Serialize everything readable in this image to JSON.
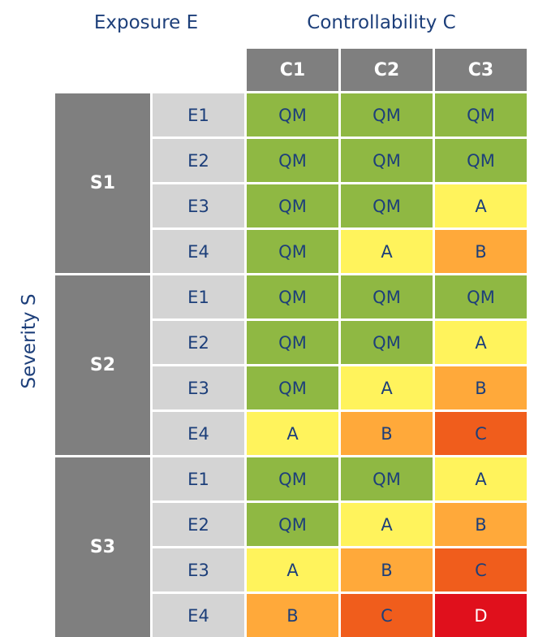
{
  "headers": {
    "exposure": "Exposure E",
    "controllability": "Controllability C",
    "severity": "Severity S"
  },
  "columns": [
    "C1",
    "C2",
    "C3"
  ],
  "severity_levels": [
    "S1",
    "S2",
    "S3"
  ],
  "exposure_levels": [
    "E1",
    "E2",
    "E3",
    "E4"
  ],
  "matrix": [
    [
      [
        "QM",
        "QM",
        "QM"
      ],
      [
        "QM",
        "QM",
        "QM"
      ],
      [
        "QM",
        "QM",
        "A"
      ],
      [
        "QM",
        "A",
        "B"
      ]
    ],
    [
      [
        "QM",
        "QM",
        "QM"
      ],
      [
        "QM",
        "QM",
        "A"
      ],
      [
        "QM",
        "A",
        "B"
      ],
      [
        "A",
        "B",
        "C"
      ]
    ],
    [
      [
        "QM",
        "QM",
        "A"
      ],
      [
        "QM",
        "A",
        "B"
      ],
      [
        "A",
        "B",
        "C"
      ],
      [
        "B",
        "C",
        "D"
      ]
    ]
  ],
  "colors": {
    "QM": "#8fb843",
    "A": "#fff35c",
    "B": "#ffa93a",
    "C": "#f05d1c",
    "D": "#e0101c",
    "header_gray": "#7f7f7f",
    "exposure_gray": "#d4d4d4",
    "text_blue": "#1d3f7a"
  }
}
